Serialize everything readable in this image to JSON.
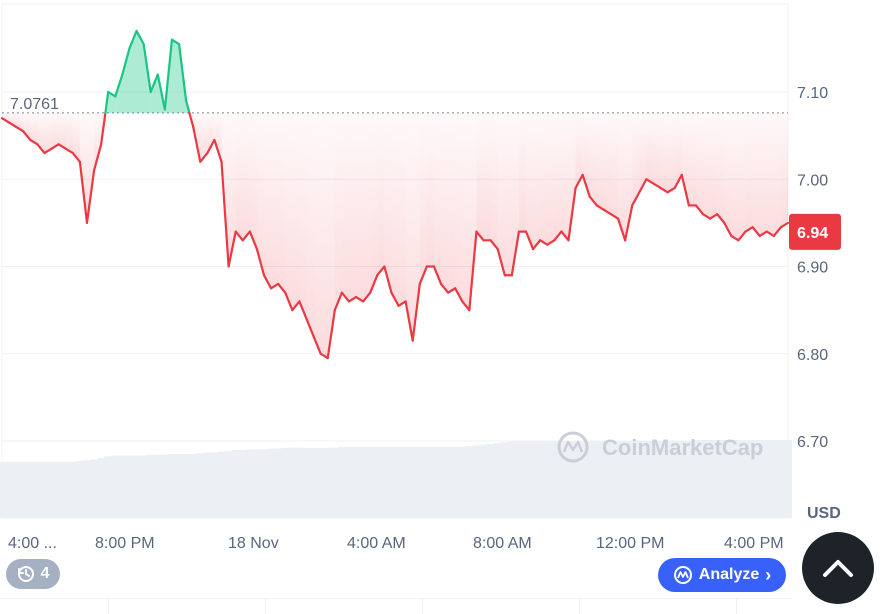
{
  "chart_data": {
    "type": "area",
    "y_unit": "USD",
    "ylim": [
      6.63,
      7.2
    ],
    "y_ticks": [
      "7.10",
      "7.00",
      "6.90",
      "6.80",
      "6.70"
    ],
    "y_tick_values": [
      7.1,
      7.0,
      6.9,
      6.8,
      6.7
    ],
    "x_ticks": [
      "4:00 ...",
      "8:00 PM",
      "18 Nov",
      "4:00 AM",
      "8:00 AM",
      "12:00 PM",
      "4:00 PM"
    ],
    "reference_price": 7.0761,
    "reference_label": "7.0761",
    "current_price_label": "6.94",
    "grid": true,
    "colors": {
      "up": "#16c784",
      "down": "#ea3943",
      "grid": "#eff2f5",
      "price_tag": "#ea3943"
    },
    "series": [
      {
        "values": [
          7.07,
          7.065,
          7.06,
          7.055,
          7.045,
          7.04,
          7.03,
          7.035,
          7.04,
          7.035,
          7.03,
          7.02,
          6.95,
          7.01,
          7.04,
          7.1,
          7.095,
          7.12,
          7.15,
          7.17,
          7.155,
          7.1,
          7.12,
          7.08,
          7.16,
          7.155,
          7.09,
          7.06,
          7.02,
          7.03,
          7.045,
          7.02,
          6.9,
          6.94,
          6.93,
          6.94,
          6.92,
          6.89,
          6.875,
          6.88,
          6.87,
          6.85,
          6.86,
          6.84,
          6.82,
          6.8,
          6.795,
          6.85,
          6.87,
          6.86,
          6.865,
          6.86,
          6.87,
          6.89,
          6.9,
          6.87,
          6.855,
          6.86,
          6.815,
          6.88,
          6.9,
          6.9,
          6.88,
          6.87,
          6.875,
          6.86,
          6.85,
          6.94,
          6.93,
          6.93,
          6.92,
          6.89,
          6.89,
          6.94,
          6.94,
          6.92,
          6.93,
          6.925,
          6.93,
          6.94,
          6.93,
          6.99,
          7.005,
          6.98,
          6.97,
          6.965,
          6.96,
          6.955,
          6.93,
          6.97,
          6.985,
          7.0,
          6.995,
          6.99,
          6.985,
          6.99,
          7.005,
          6.97,
          6.97,
          6.96,
          6.955,
          6.96,
          6.95,
          6.935,
          6.93,
          6.94,
          6.945,
          6.935,
          6.94,
          6.935,
          6.945,
          6.95
        ],
        "volume_level": [
          0.72,
          0.72,
          0.72,
          0.72,
          0.72,
          0.72,
          0.72,
          0.72,
          0.72,
          0.72,
          0.72,
          0.73,
          0.74,
          0.75,
          0.77,
          0.79,
          0.8,
          0.8,
          0.8,
          0.8,
          0.8,
          0.81,
          0.81,
          0.81,
          0.82,
          0.82,
          0.82,
          0.82,
          0.83,
          0.84,
          0.84,
          0.85,
          0.86,
          0.87,
          0.87,
          0.88,
          0.88,
          0.88,
          0.89,
          0.89,
          0.9,
          0.9,
          0.9,
          0.9,
          0.9,
          0.9,
          0.9,
          0.9,
          0.91,
          0.91,
          0.91,
          0.91,
          0.91,
          0.91,
          0.91,
          0.91,
          0.91,
          0.91,
          0.91,
          0.91,
          0.91,
          0.91,
          0.91,
          0.91,
          0.91,
          0.91,
          0.92,
          0.93,
          0.94,
          0.95,
          0.96,
          0.97,
          0.98,
          0.98,
          0.98,
          0.98,
          0.98,
          0.98,
          0.98,
          0.98,
          0.98,
          0.98,
          0.98,
          0.98,
          0.98,
          0.99,
          0.99,
          0.99,
          0.99,
          0.99,
          0.99,
          0.99,
          0.99,
          0.99,
          0.99,
          0.99,
          0.99,
          0.99,
          1.0,
          1.0,
          1.0,
          1.0,
          1.0,
          1.0,
          1.0,
          1.0,
          1.0,
          1.0,
          1.0,
          1.0,
          1.0,
          1.0
        ]
      }
    ]
  },
  "watermark": {
    "text": "CoinMarketCap"
  },
  "history_badge": {
    "icon": "history-icon",
    "count": "4"
  },
  "analyze_button": {
    "label": "Analyze",
    "icon": "coinmarketcap-logo-icon",
    "chevron": "›"
  },
  "scroll_top": {
    "icon": "chevron-up-icon"
  }
}
